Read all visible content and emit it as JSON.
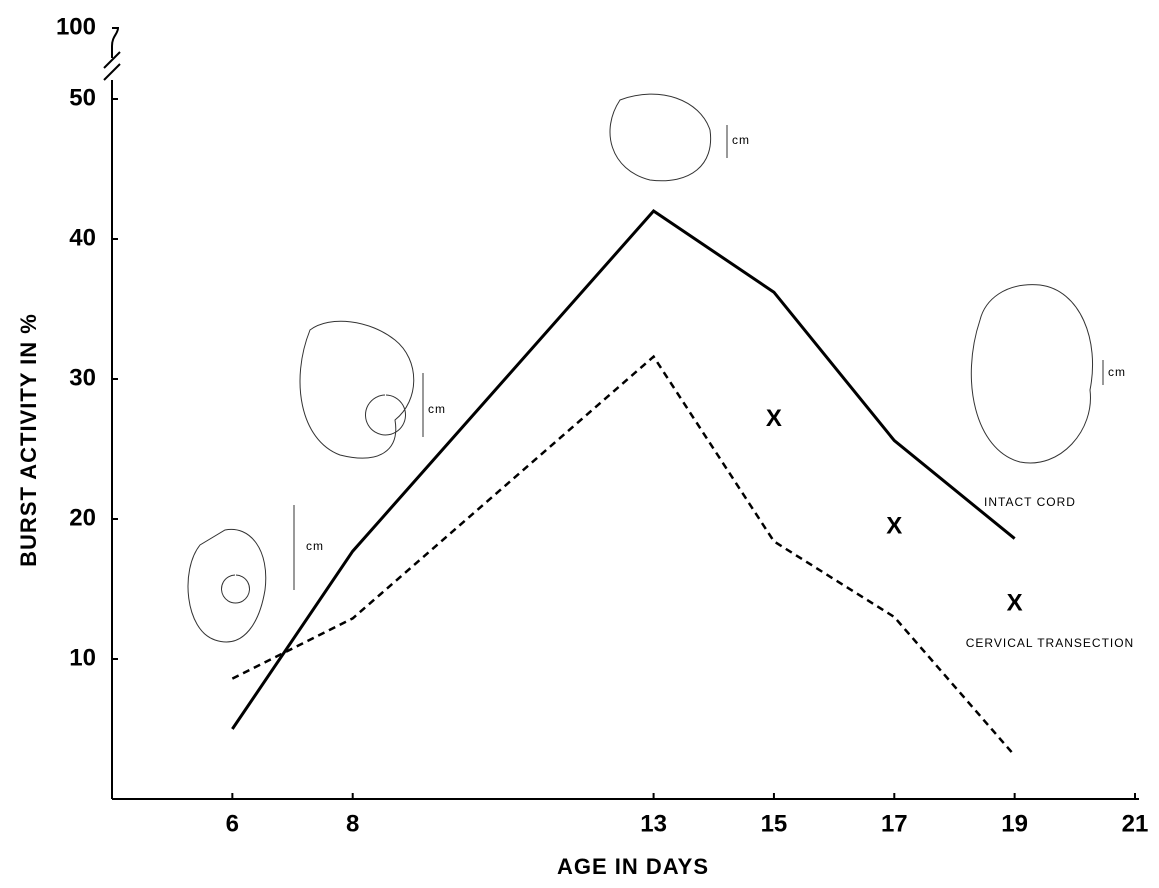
{
  "chart_data": {
    "type": "line",
    "xlabel": "AGE IN DAYS",
    "ylabel": "BURST ACTIVITY IN %",
    "xlim": [
      4,
      21
    ],
    "ylim": [
      0,
      50
    ],
    "xticks": [
      6,
      8,
      13,
      15,
      17,
      19,
      21
    ],
    "yticks": [
      10,
      20,
      30,
      40,
      50
    ],
    "ytick_above_break": 100,
    "x": [
      6,
      8,
      13,
      15,
      17,
      19
    ],
    "series": [
      {
        "name": "INTACT CORD",
        "color": "#000000",
        "dashed": false,
        "values": [
          5.0,
          17.7,
          42.0,
          36.2,
          25.6,
          18.6
        ]
      },
      {
        "name": "CERVICAL TRANSECTION",
        "color": "#000000",
        "dashed": true,
        "values": [
          8.6,
          12.9,
          31.6,
          18.4,
          13.0,
          3.1
        ]
      }
    ],
    "markers": {
      "symbol": "X",
      "x": [
        15,
        17,
        19
      ],
      "values": [
        27.1,
        19.4,
        13.9
      ]
    },
    "scale_labels": [
      "cm",
      "cm",
      "cm",
      "cm"
    ]
  }
}
